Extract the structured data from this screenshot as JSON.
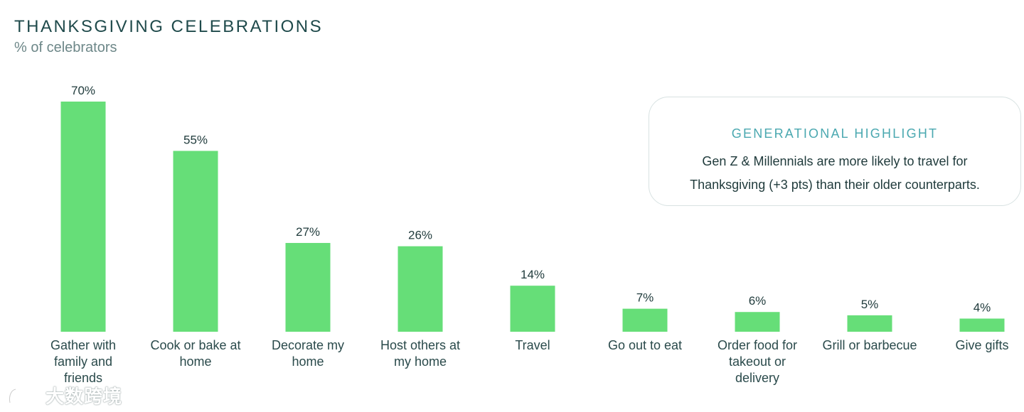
{
  "title": "THANKSGIVING CELEBRATIONS",
  "subtitle": "% of celebrators",
  "callout": {
    "heading": "GENERATIONAL HIGHLIGHT",
    "line1": "Gen Z & Millennials are more likely to travel for",
    "line2": "Thanksgiving (+3 pts)  than their older counterparts."
  },
  "watermark": {
    "text": "大数跨境"
  },
  "colors": {
    "bar": "#66de78",
    "title": "#1f4a4b",
    "accent": "#4aa8b0"
  },
  "chart_data": {
    "type": "bar",
    "title": "THANKSGIVING CELEBRATIONS",
    "subtitle": "% of celebrators",
    "categories": [
      [
        "Gather with",
        "family and",
        "friends"
      ],
      [
        "Cook or bake at",
        "home"
      ],
      [
        "Decorate my",
        "home"
      ],
      [
        "Host others at",
        "my home"
      ],
      [
        "Travel"
      ],
      [
        "Go out to eat"
      ],
      [
        "Order food for",
        "takeout or",
        "delivery"
      ],
      [
        "Grill or barbecue"
      ],
      [
        "Give gifts"
      ]
    ],
    "values": [
      70,
      55,
      27,
      26,
      14,
      7,
      6,
      5,
      4
    ],
    "value_labels": [
      "70%",
      "55%",
      "27%",
      "26%",
      "14%",
      "7%",
      "6%",
      "5%",
      "4%"
    ],
    "ylim": [
      0,
      70
    ],
    "grid": false,
    "legend": "none"
  }
}
